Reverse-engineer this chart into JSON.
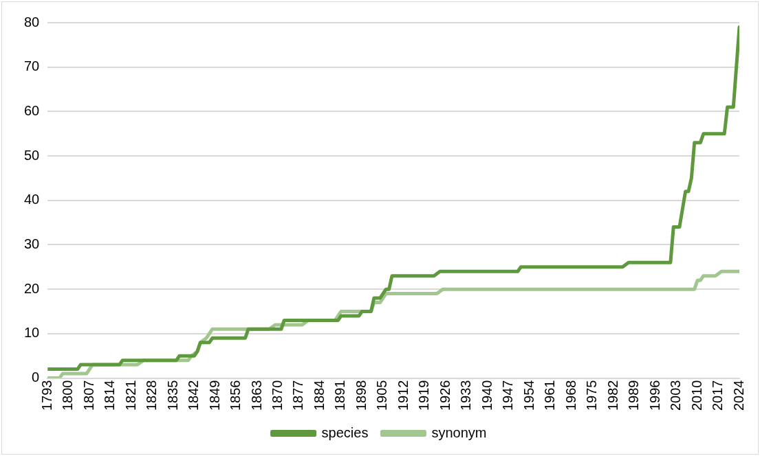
{
  "chart_data": {
    "type": "line",
    "legend": "bottom",
    "grid": "y",
    "marker": "none",
    "line_style": "solid",
    "xlim": [
      1793,
      2024
    ],
    "xticks": [
      1793,
      1800,
      1807,
      1814,
      1821,
      1828,
      1835,
      1842,
      1849,
      1856,
      1863,
      1870,
      1877,
      1884,
      1891,
      1898,
      1905,
      1912,
      1919,
      1926,
      1933,
      1940,
      1947,
      1954,
      1961,
      1968,
      1975,
      1982,
      1989,
      1996,
      2003,
      2010,
      2017,
      2024
    ],
    "ylim": [
      0,
      80
    ],
    "yticks": [
      0,
      10,
      20,
      30,
      40,
      50,
      60,
      70,
      80
    ],
    "series": [
      {
        "name": "species",
        "color": "#5f993d",
        "x": [
          1793,
          1803,
          1804,
          1817,
          1818,
          1836,
          1837,
          1842,
          1843,
          1844,
          1847,
          1848,
          1859,
          1860,
          1871,
          1872,
          1890,
          1891,
          1897,
          1898,
          1901,
          1902,
          1904,
          1905,
          1906,
          1907,
          1908,
          1922,
          1924,
          1950,
          1951,
          1985,
          1987,
          2001,
          2002,
          2004,
          2006,
          2007,
          2008,
          2009,
          2010,
          2011,
          2012,
          2019,
          2020,
          2022,
          2024
        ],
        "values": [
          2,
          2,
          3,
          3,
          4,
          4,
          5,
          5,
          6,
          8,
          8,
          9,
          9,
          11,
          11,
          13,
          13,
          14,
          14,
          15,
          15,
          18,
          18,
          19,
          20,
          20,
          23,
          23,
          24,
          24,
          25,
          25,
          26,
          26,
          34,
          34,
          42,
          42,
          45,
          53,
          53,
          53,
          55,
          55,
          61,
          61,
          79
        ]
      },
      {
        "name": "synonym",
        "color": "#a1c78f",
        "x": [
          1793,
          1797,
          1798,
          1806,
          1807,
          1808,
          1823,
          1825,
          1840,
          1841,
          1843,
          1844,
          1846,
          1848,
          1867,
          1869,
          1878,
          1880,
          1889,
          1891,
          1901,
          1902,
          1904,
          1906,
          1923,
          1925,
          2009,
          2010,
          2011,
          2012,
          2016,
          2018,
          2024
        ],
        "values": [
          0,
          0,
          1,
          1,
          2,
          3,
          3,
          4,
          4,
          5,
          6,
          8,
          9,
          11,
          11,
          12,
          12,
          13,
          13,
          15,
          15,
          17,
          17,
          19,
          19,
          20,
          20,
          22,
          22,
          23,
          23,
          24,
          24
        ]
      }
    ]
  }
}
